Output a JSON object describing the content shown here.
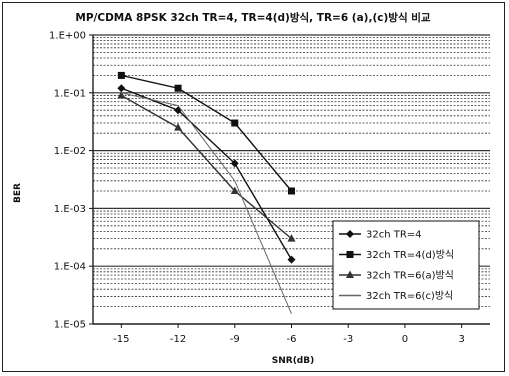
{
  "chart_data": {
    "type": "line",
    "title": "MP/CDMA 8PSK 32ch TR=4, TR=4(d)방식, TR=6 (a),(c)방식 비교",
    "xlabel": "SNR(dB)",
    "ylabel": "BER",
    "y_scale": "log",
    "xlim": [
      -16.5,
      4.5
    ],
    "ylim": [
      1e-05,
      1
    ],
    "x_ticks": [
      -15,
      -12,
      -9,
      -6,
      -3,
      0,
      3
    ],
    "x_tick_labels": [
      "-15",
      "-12",
      "-9",
      "-6",
      "-3",
      "0",
      "3"
    ],
    "y_ticks": [
      1,
      0.1,
      0.01,
      0.001,
      0.0001,
      1e-05
    ],
    "y_tick_labels": [
      "1.E+00",
      "1.E-01",
      "1.E-02",
      "1.E-03",
      "1.E-04",
      "1.E-05"
    ],
    "grid": true,
    "legend_position": "bottom-right",
    "series": [
      {
        "name": "32ch TR=4",
        "marker": "diamond",
        "color": "#111111",
        "x": [
          -15,
          -12,
          -9,
          -6
        ],
        "y": [
          0.12,
          0.05,
          0.006,
          0.00013
        ]
      },
      {
        "name": "32ch TR=4(d)방식",
        "marker": "square",
        "color": "#111111",
        "x": [
          -15,
          -12,
          -9,
          -6
        ],
        "y": [
          0.2,
          0.12,
          0.03,
          0.002
        ]
      },
      {
        "name": "32ch TR=6(a)방식",
        "marker": "triangle",
        "color": "#333333",
        "x": [
          -15,
          -12,
          -9,
          -6
        ],
        "y": [
          0.09,
          0.025,
          0.002,
          0.0003
        ]
      },
      {
        "name": "32ch TR=6(c)방식",
        "marker": "none",
        "color": "#666666",
        "x": [
          -15,
          -12,
          -9,
          -6
        ],
        "y": [
          0.1,
          0.06,
          0.003,
          1.5e-05
        ]
      }
    ]
  }
}
